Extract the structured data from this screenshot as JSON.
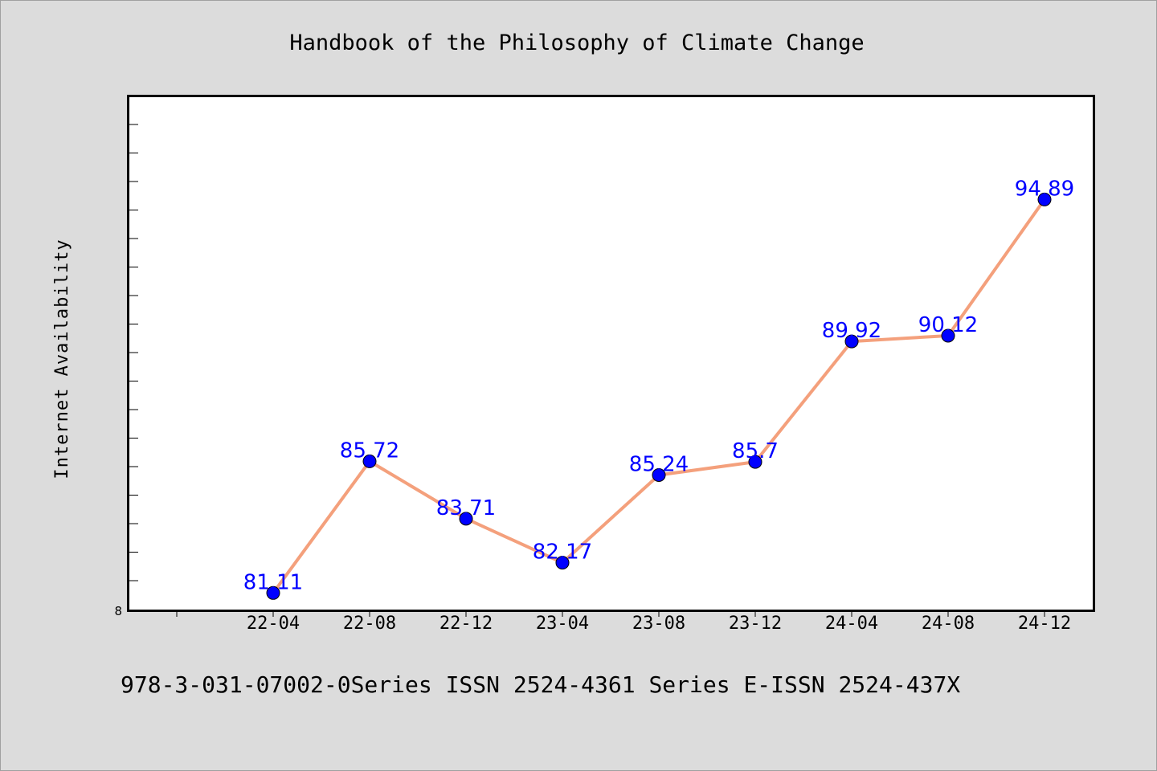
{
  "chart_data": {
    "type": "line",
    "title": "Handbook of the Philosophy of Climate Change",
    "ylabel": "Internet Availability",
    "xlabel": "",
    "categories": [
      "22-04",
      "22-08",
      "22-12",
      "23-04",
      "23-08",
      "23-12",
      "24-04",
      "24-08",
      "24-12"
    ],
    "series": [
      {
        "values": [
          81.11,
          85.72,
          83.71,
          82.17,
          85.24,
          85.7,
          89.92,
          90.12,
          94.89
        ]
      }
    ],
    "data_labels": [
      "81.11",
      "85.72",
      "83.71",
      "82.17",
      "85.24",
      "85.7",
      "89.92",
      "90.12",
      "94.89"
    ],
    "y_tick_labels": [
      "8"
    ],
    "ylim": [
      80.5,
      98.5
    ],
    "grid": false,
    "legend": "none",
    "colors": {
      "line": "#f4a07c",
      "marker": "#0000ff",
      "label": "#0000ff",
      "background": "#dcdcdc",
      "plot_background": "#ffffff"
    }
  },
  "footer": "978-3-031-07002-0Series ISSN 2524-4361 Series E-ISSN 2524-437X"
}
